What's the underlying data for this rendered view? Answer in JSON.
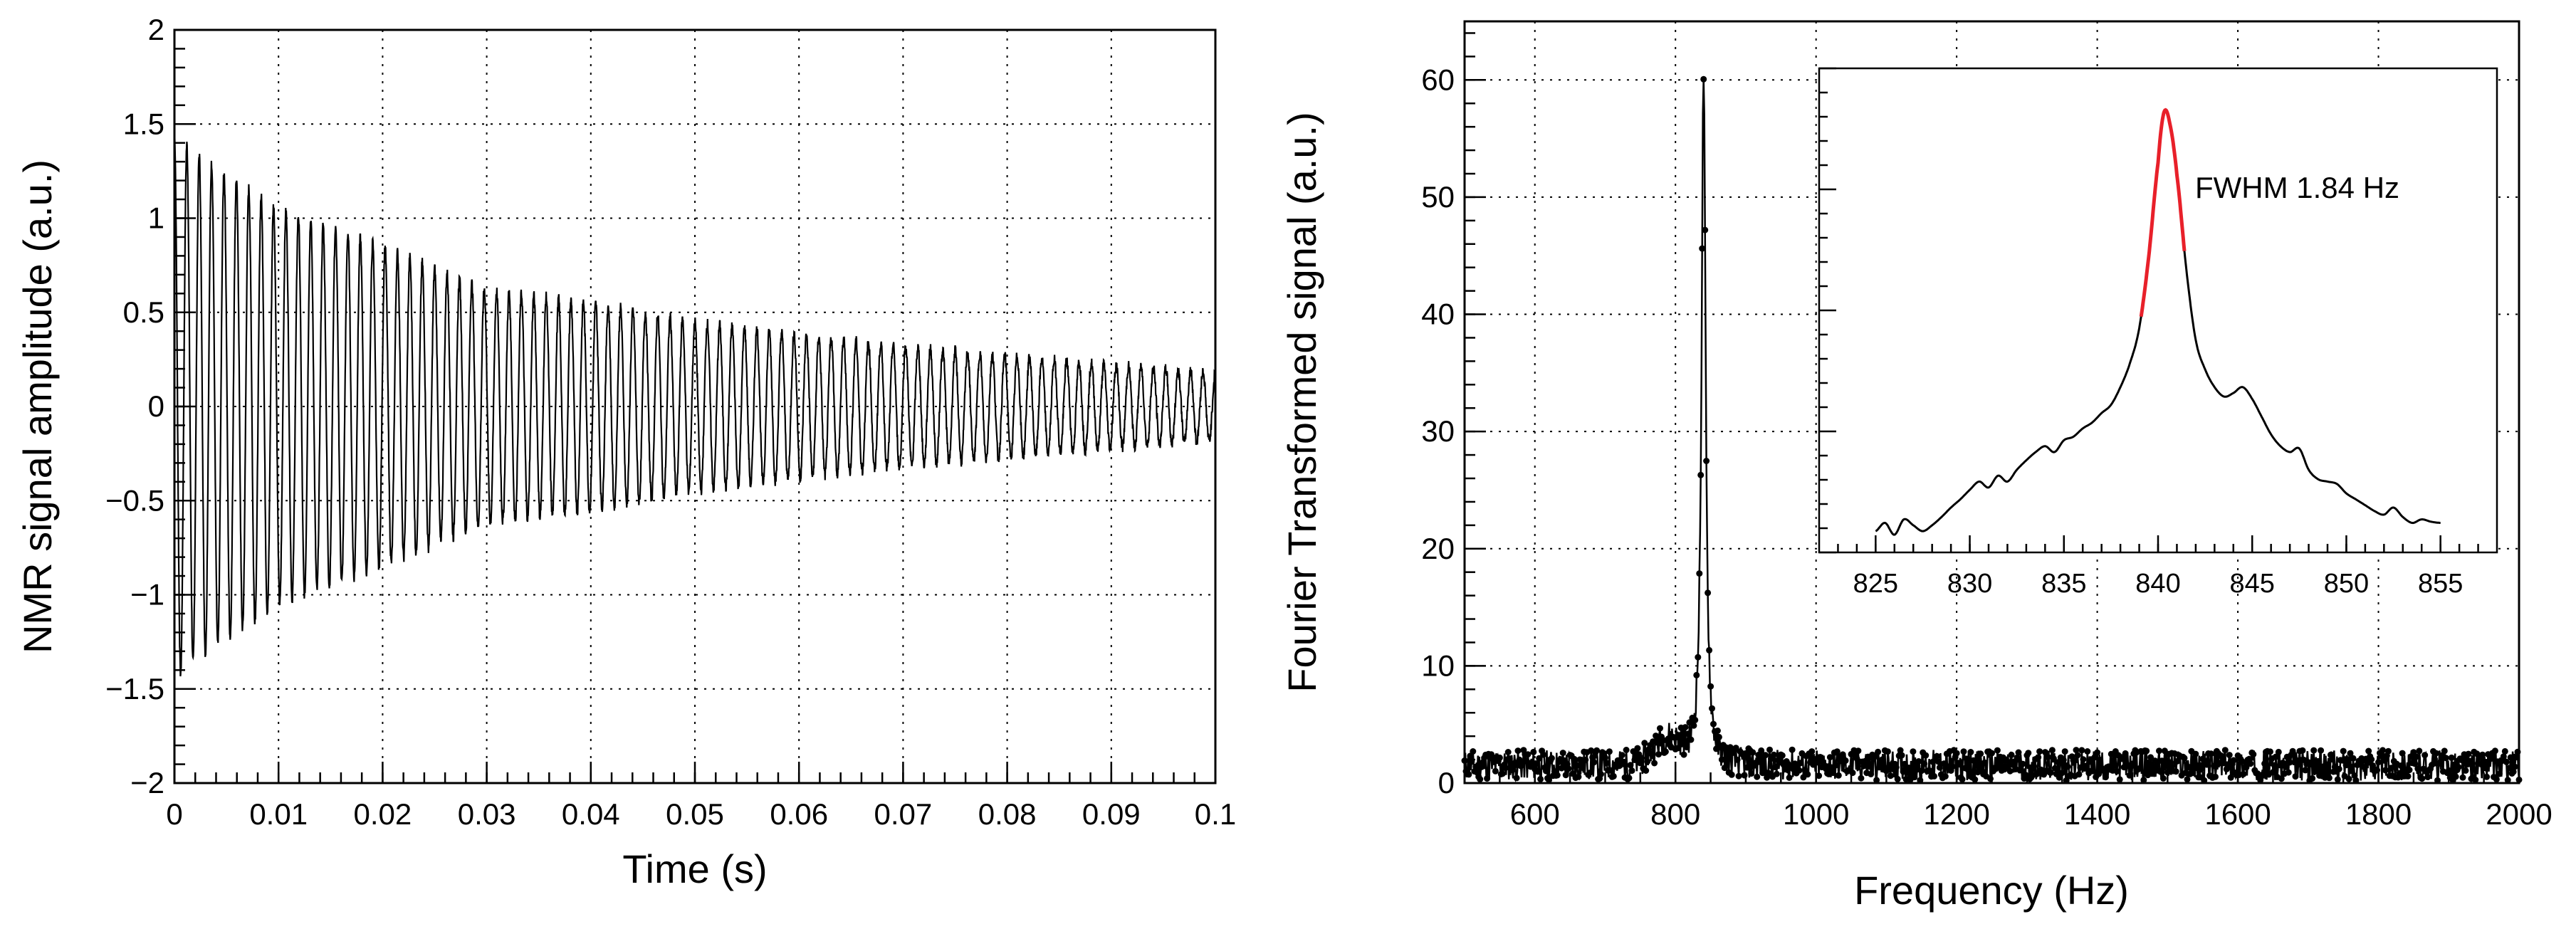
{
  "chart_data": [
    {
      "type": "line",
      "xlabel": "Time (s)",
      "ylabel": "NMR signal amplitude (a.u.)",
      "xlim": [
        0,
        0.1
      ],
      "ylim": [
        -2,
        2
      ],
      "grid": true,
      "x_ticks": [
        0,
        0.01,
        0.02,
        0.03,
        0.04,
        0.05,
        0.06,
        0.07,
        0.08,
        0.09,
        0.1
      ],
      "x_tick_labels": [
        "0",
        "0.01",
        "0.02",
        "0.03",
        "0.04",
        "0.05",
        "0.06",
        "0.07",
        "0.08",
        "0.09",
        "0.1"
      ],
      "y_ticks": [
        -2,
        -1.5,
        -1,
        -0.5,
        0,
        0.5,
        1,
        1.5,
        2
      ],
      "y_tick_labels": [
        "−2",
        "−1.5",
        "−1",
        "−0.5",
        "0",
        "0.5",
        "1",
        "1.5",
        "2"
      ],
      "signal": {
        "frequency_hz": 840,
        "envelope_t": [
          0,
          0.002,
          0.01,
          0.02,
          0.03,
          0.04,
          0.05,
          0.06,
          0.07,
          0.08,
          0.09,
          0.1
        ],
        "envelope_amplitude": [
          1.45,
          1.35,
          1.05,
          0.85,
          0.62,
          0.55,
          0.45,
          0.38,
          0.32,
          0.27,
          0.22,
          0.18
        ]
      },
      "line_color": "#000000"
    },
    {
      "type": "line",
      "xlabel": "Frequency (Hz)",
      "ylabel": "Fourier Transformed signal (a.u.)",
      "xlim": [
        500,
        2000
      ],
      "ylim": [
        0,
        65
      ],
      "grid": true,
      "x_ticks": [
        600,
        800,
        1000,
        1200,
        1400,
        1600,
        1800,
        2000
      ],
      "x_tick_labels": [
        "600",
        "800",
        "1000",
        "1200",
        "1400",
        "1600",
        "1800",
        "2000"
      ],
      "y_ticks": [
        0,
        10,
        20,
        30,
        40,
        50,
        60
      ],
      "y_tick_labels": [
        "0",
        "10",
        "20",
        "30",
        "40",
        "50",
        "60"
      ],
      "peak": {
        "center_hz": 840,
        "height": 60,
        "baseline": 1.0,
        "half_width_hz": 3.5
      },
      "line_color": "#000000",
      "inset": {
        "xlim": [
          822,
          858
        ],
        "ylim": [
          22,
          63
        ],
        "x_ticks": [
          825,
          830,
          835,
          840,
          845,
          850,
          855
        ],
        "x_tick_labels": [
          "825",
          "830",
          "835",
          "840",
          "845",
          "850",
          "855"
        ],
        "annotation": "FWHM 1.84 Hz",
        "fit_color": "#e8202a",
        "fit_range": [
          839.1,
          841.4
        ],
        "x": [
          825,
          825.5,
          826,
          826.5,
          827,
          827.5,
          828,
          828.5,
          829,
          829.5,
          830,
          830.5,
          831,
          831.5,
          832,
          832.5,
          833,
          833.5,
          834,
          834.5,
          835,
          835.5,
          836,
          836.5,
          837,
          837.5,
          838,
          838.5,
          839,
          839.5,
          840,
          840.3,
          840.6,
          841,
          841.5,
          842,
          842.5,
          843,
          843.5,
          844,
          844.5,
          845,
          845.5,
          846,
          846.5,
          847,
          847.5,
          848,
          848.5,
          849,
          849.5,
          850,
          850.5,
          851,
          851.5,
          852,
          852.5,
          853,
          853.5,
          854,
          854.5,
          855
        ],
        "y": [
          23.8,
          24.5,
          23.5,
          24.8,
          24.3,
          23.8,
          24.3,
          25.0,
          25.8,
          26.5,
          27.3,
          28.0,
          27.5,
          28.5,
          28.0,
          29.0,
          29.8,
          30.5,
          31.0,
          30.5,
          31.5,
          31.8,
          32.5,
          33.0,
          33.8,
          34.5,
          36.0,
          38.0,
          41.0,
          47.0,
          55.0,
          59.2,
          58.5,
          54.0,
          46.0,
          40.0,
          37.5,
          36.0,
          35.2,
          35.5,
          36.0,
          35.0,
          33.5,
          32.0,
          31.0,
          30.5,
          30.8,
          29.0,
          28.2,
          28.0,
          27.8,
          27.0,
          26.5,
          26.0,
          25.5,
          25.2,
          25.8,
          25.0,
          24.5,
          24.8,
          24.6,
          24.5
        ]
      }
    }
  ]
}
